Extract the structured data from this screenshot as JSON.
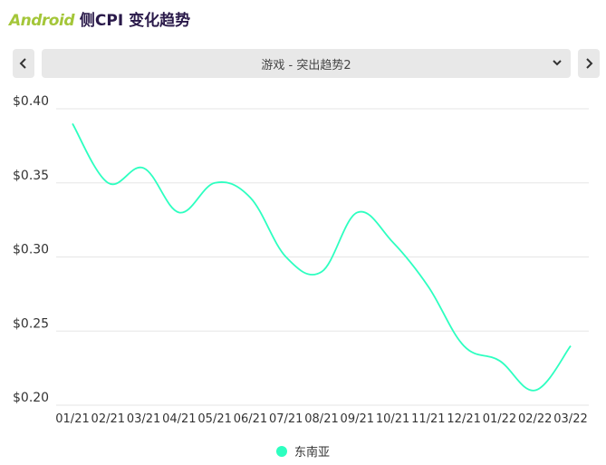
{
  "header": {
    "brand": "Android",
    "title_rest": " 侧CPI 变化趋势"
  },
  "selector": {
    "value": "游戏 - 突出趋势2",
    "prev_icon": "chevron-left-icon",
    "next_icon": "chevron-right-icon",
    "caret_icon": "chevron-down-icon"
  },
  "colors": {
    "series": "#2dffc0",
    "grid": "#e6e6e6"
  },
  "chart_data": {
    "type": "line",
    "x": [
      "01/21",
      "02/21",
      "03/21",
      "04/21",
      "05/21",
      "06/21",
      "07/21",
      "08/21",
      "09/21",
      "10/21",
      "11/21",
      "12/21",
      "01/22",
      "02/22",
      "03/22"
    ],
    "series": [
      {
        "name": "东南亚",
        "values": [
          0.39,
          0.35,
          0.36,
          0.33,
          0.35,
          0.34,
          0.3,
          0.29,
          0.33,
          0.31,
          0.28,
          0.24,
          0.23,
          0.21,
          0.24
        ]
      }
    ],
    "yticks": [
      "$0.40",
      "$0.35",
      "$0.30",
      "$0.25",
      "$0.20"
    ],
    "ytick_values": [
      0.4,
      0.35,
      0.3,
      0.25,
      0.2
    ],
    "ylim": [
      0.2,
      0.4
    ],
    "grid": true,
    "legend": "bottom"
  }
}
